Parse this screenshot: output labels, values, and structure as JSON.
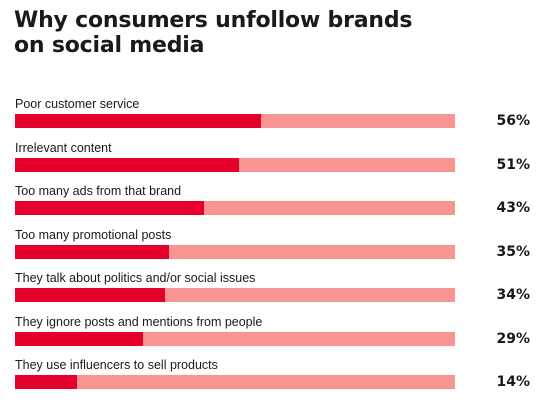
{
  "header": {
    "title_line1": "Why consumers unfollow brands",
    "title_line2": "on social media"
  },
  "colors": {
    "bar_fill": "#e4002b",
    "bar_track": "#f99590",
    "text": "#1a1a1a"
  },
  "chart_data": {
    "type": "bar",
    "orientation": "horizontal",
    "title": "Why consumers unfollow brands on social media",
    "xlabel": "",
    "ylabel": "",
    "xlim": [
      0,
      100
    ],
    "grid": false,
    "categories": [
      "Poor customer service",
      "Irrelevant content",
      "Too many ads from that brand",
      "Too many promotional posts",
      "They talk about politics and/or social issues",
      "They ignore posts and mentions from people",
      "They use influencers to sell products"
    ],
    "values": [
      56,
      51,
      43,
      35,
      34,
      29,
      14
    ],
    "value_labels": [
      "56%",
      "51%",
      "43%",
      "35%",
      "34%",
      "29%",
      "14%"
    ]
  }
}
